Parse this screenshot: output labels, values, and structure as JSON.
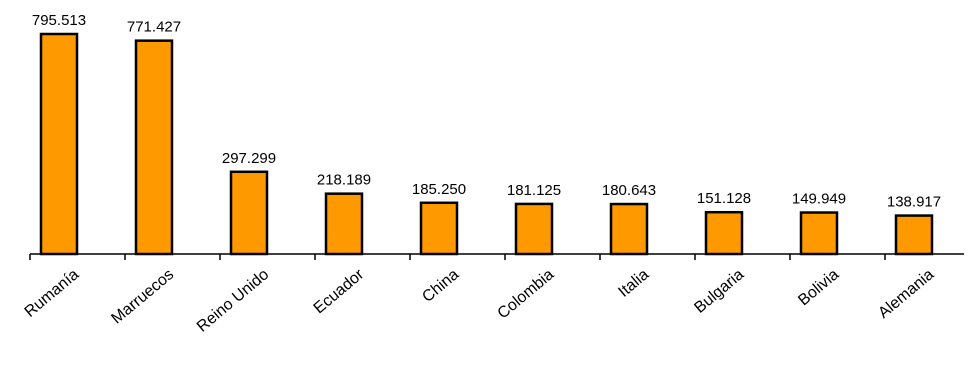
{
  "chart_data": {
    "type": "bar",
    "categories": [
      "Rumanía",
      "Marruecos",
      "Reino Unido",
      "Ecuador",
      "China",
      "Colombia",
      "Italia",
      "Bulgaria",
      "Bolivia",
      "Alemania"
    ],
    "values": [
      795513,
      771427,
      297299,
      218189,
      185250,
      181125,
      180643,
      151128,
      149949,
      138917
    ],
    "value_labels": [
      "795.513",
      "771.427",
      "297.299",
      "218.189",
      "185.250",
      "181.125",
      "180.643",
      "151.128",
      "149.949",
      "138.917"
    ],
    "title": "",
    "xlabel": "",
    "ylabel": "",
    "ylim": [
      0,
      840000
    ],
    "grid": false,
    "legend": "none",
    "bar_color": "#FF9900"
  }
}
